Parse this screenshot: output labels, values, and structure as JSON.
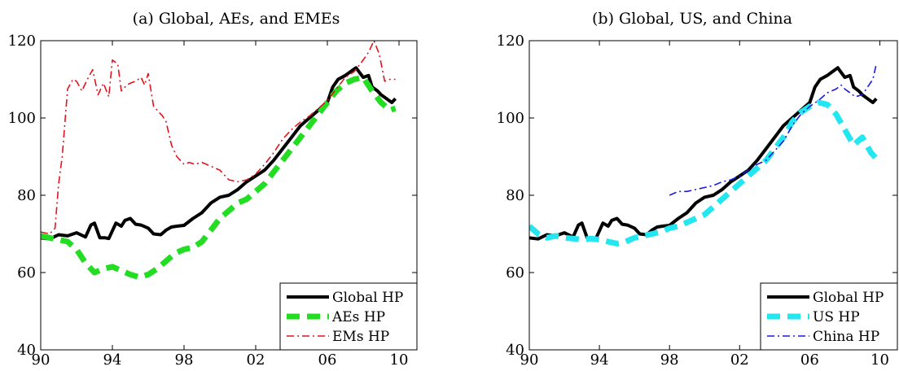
{
  "chart_data": [
    {
      "type": "line",
      "title": "(a) Global, AEs, and EMEs",
      "xlabel": "",
      "ylabel": "",
      "xlim": [
        1990,
        2011
      ],
      "ylim": [
        40,
        120
      ],
      "xticks": [
        1990,
        1994,
        1998,
        2002,
        2006,
        2010
      ],
      "xtick_labels": [
        "90",
        "94",
        "98",
        "02",
        "06",
        "10"
      ],
      "yticks": [
        40,
        60,
        80,
        100,
        120
      ],
      "ytick_labels": [
        "40",
        "60",
        "80",
        "100",
        "120"
      ],
      "grid": false,
      "legend_position": "bottom-right",
      "series": [
        {
          "name": "Global HP",
          "color": "#000000",
          "style": "solid",
          "x": [
            1990.0,
            1990.5,
            1991.0,
            1991.5,
            1992.0,
            1992.5,
            1992.8,
            1993.0,
            1993.3,
            1993.6,
            1993.8,
            1994.2,
            1994.5,
            1994.7,
            1995.0,
            1995.3,
            1995.6,
            1996.0,
            1996.3,
            1996.7,
            1997.0,
            1997.3,
            1997.6,
            1998.0,
            1998.5,
            1999.0,
            1999.5,
            2000.0,
            2000.5,
            2001.0,
            2001.5,
            2002.0,
            2002.5,
            2003.0,
            2003.5,
            2004.0,
            2004.5,
            2005.0,
            2005.5,
            2006.0,
            2006.3,
            2006.6,
            2007.0,
            2007.3,
            2007.6,
            2008.0,
            2008.3,
            2008.5,
            2008.8,
            2009.0,
            2009.3,
            2009.6,
            2009.8
          ],
          "values": [
            69,
            68.7,
            69.8,
            69.5,
            70.3,
            69.2,
            72.3,
            72.8,
            69.0,
            69.0,
            68.8,
            72.8,
            72.0,
            73.5,
            74.0,
            72.5,
            72.3,
            71.5,
            70.0,
            69.8,
            71.0,
            71.8,
            72.0,
            72.2,
            74.0,
            75.5,
            78.0,
            79.5,
            80.0,
            81.5,
            83.5,
            85.0,
            86.5,
            89.0,
            92.0,
            95.0,
            98.0,
            100.0,
            102.0,
            104.0,
            108.0,
            110.0,
            111.0,
            112.0,
            113.0,
            110.5,
            111.0,
            108.0,
            107.0,
            106.0,
            105.0,
            104.0,
            105.0
          ]
        },
        {
          "name": "AEs HP",
          "color": "#22dd22",
          "style": "dashed",
          "x": [
            1990.0,
            1990.5,
            1991.0,
            1991.5,
            1992.0,
            1992.5,
            1993.0,
            1993.5,
            1994.0,
            1994.5,
            1995.0,
            1995.5,
            1996.0,
            1996.5,
            1997.0,
            1997.5,
            1998.0,
            1998.5,
            1999.0,
            1999.5,
            2000.0,
            2000.5,
            2001.0,
            2001.5,
            2002.0,
            2002.5,
            2003.0,
            2003.5,
            2004.0,
            2004.5,
            2005.0,
            2005.5,
            2006.0,
            2006.5,
            2007.0,
            2007.5,
            2008.0,
            2008.5,
            2009.0,
            2009.5,
            2009.8
          ],
          "values": [
            69.5,
            69.0,
            68.5,
            68.0,
            66.0,
            62.5,
            60.0,
            61.0,
            61.5,
            60.5,
            59.5,
            58.8,
            59.5,
            61.0,
            63.0,
            65.0,
            66.0,
            66.5,
            68.0,
            71.0,
            74.0,
            76.0,
            78.0,
            79.0,
            81.0,
            83.0,
            86.0,
            89.0,
            92.0,
            95.0,
            98.0,
            101.0,
            104.0,
            107.0,
            109.0,
            110.0,
            110.5,
            107.0,
            104.0,
            102.0,
            102.5
          ]
        },
        {
          "name": "EMs HP",
          "color": "#e0141e",
          "style": "dashdot",
          "x": [
            1990.0,
            1990.5,
            1990.8,
            1991.0,
            1991.2,
            1991.5,
            1991.8,
            1992.0,
            1992.3,
            1992.6,
            1992.9,
            1993.2,
            1993.5,
            1993.8,
            1994.0,
            1994.3,
            1994.5,
            1994.8,
            1995.0,
            1995.3,
            1995.6,
            1995.8,
            1996.0,
            1996.3,
            1996.6,
            1996.8,
            1997.0,
            1997.3,
            1997.6,
            1998.0,
            1998.3,
            1998.6,
            1999.0,
            1999.5,
            2000.0,
            2000.5,
            2001.0,
            2001.5,
            2002.0,
            2002.5,
            2003.0,
            2003.5,
            2004.0,
            2004.5,
            2005.0,
            2005.5,
            2006.0,
            2006.5,
            2007.0,
            2007.5,
            2008.0,
            2008.3,
            2008.6,
            2008.9,
            2009.2,
            2009.5,
            2009.8
          ],
          "values": [
            70.5,
            70.0,
            71.5,
            83.0,
            90.0,
            107.5,
            110.0,
            109.5,
            107.0,
            110.0,
            112.5,
            106.0,
            109.0,
            105.5,
            115.0,
            114.0,
            107.0,
            108.5,
            109.0,
            109.5,
            110.5,
            108.5,
            111.5,
            103.0,
            101.5,
            100.5,
            99.0,
            93.0,
            90.0,
            88.0,
            88.5,
            88.0,
            88.5,
            87.5,
            86.5,
            84.0,
            83.5,
            84.0,
            85.5,
            88.0,
            91.0,
            94.5,
            97.0,
            99.0,
            100.5,
            102.5,
            104.5,
            107.5,
            110.5,
            112.0,
            115.0,
            117.0,
            120.0,
            116.5,
            109.5,
            110.0,
            110.0
          ]
        }
      ]
    },
    {
      "type": "line",
      "title": "(b) Global, US, and China",
      "xlabel": "",
      "ylabel": "",
      "xlim": [
        1990,
        2011
      ],
      "ylim": [
        40,
        120
      ],
      "xticks": [
        1990,
        1994,
        1998,
        2002,
        2006,
        2010
      ],
      "xtick_labels": [
        "90",
        "94",
        "98",
        "02",
        "06",
        "10"
      ],
      "yticks": [
        40,
        60,
        80,
        100,
        120
      ],
      "ytick_labels": [
        "40",
        "60",
        "80",
        "100",
        "120"
      ],
      "grid": false,
      "legend_position": "bottom-right",
      "series": [
        {
          "name": "Global HP",
          "color": "#000000",
          "style": "solid",
          "x": [
            1990.0,
            1990.5,
            1991.0,
            1991.5,
            1992.0,
            1992.5,
            1992.8,
            1993.0,
            1993.3,
            1993.6,
            1993.8,
            1994.2,
            1994.5,
            1994.7,
            1995.0,
            1995.3,
            1995.6,
            1996.0,
            1996.3,
            1996.7,
            1997.0,
            1997.3,
            1997.6,
            1998.0,
            1998.5,
            1999.0,
            1999.5,
            2000.0,
            2000.5,
            2001.0,
            2001.5,
            2002.0,
            2002.5,
            2003.0,
            2003.5,
            2004.0,
            2004.5,
            2005.0,
            2005.5,
            2006.0,
            2006.3,
            2006.6,
            2007.0,
            2007.3,
            2007.6,
            2008.0,
            2008.3,
            2008.5,
            2008.8,
            2009.0,
            2009.3,
            2009.6,
            2009.8
          ],
          "values": [
            69,
            68.7,
            69.8,
            69.5,
            70.3,
            69.2,
            72.3,
            72.8,
            69.0,
            69.0,
            68.8,
            72.8,
            72.0,
            73.5,
            74.0,
            72.5,
            72.3,
            71.5,
            70.0,
            69.8,
            71.0,
            71.8,
            72.0,
            72.2,
            74.0,
            75.5,
            78.0,
            79.5,
            80.0,
            81.5,
            83.5,
            85.0,
            86.5,
            89.0,
            92.0,
            95.0,
            98.0,
            100.0,
            102.0,
            104.0,
            108.0,
            110.0,
            111.0,
            112.0,
            113.0,
            110.5,
            111.0,
            108.0,
            107.0,
            106.0,
            105.0,
            104.0,
            105.0
          ]
        },
        {
          "name": "US HP",
          "color": "#22e6f0",
          "style": "dashed",
          "x": [
            1990.0,
            1990.5,
            1991.0,
            1991.5,
            1992.0,
            1992.5,
            1993.0,
            1993.5,
            1994.0,
            1994.5,
            1995.0,
            1995.5,
            1996.0,
            1996.5,
            1997.0,
            1997.5,
            1998.0,
            1998.5,
            1999.0,
            1999.5,
            2000.0,
            2000.5,
            2001.0,
            2001.5,
            2002.0,
            2002.5,
            2003.0,
            2003.5,
            2004.0,
            2004.5,
            2005.0,
            2005.5,
            2006.0,
            2006.5,
            2007.0,
            2007.5,
            2008.0,
            2008.5,
            2009.0,
            2009.5,
            2009.8
          ],
          "values": [
            72.0,
            70.0,
            69.0,
            69.5,
            69.0,
            68.8,
            68.5,
            68.8,
            68.5,
            68.0,
            67.5,
            68.0,
            69.0,
            69.5,
            70.0,
            70.5,
            71.5,
            72.0,
            73.0,
            74.0,
            75.0,
            77.0,
            79.0,
            81.0,
            83.0,
            85.0,
            87.0,
            89.0,
            92.0,
            95.0,
            99.0,
            101.5,
            103.0,
            104.0,
            103.5,
            101.0,
            97.0,
            93.0,
            95.0,
            91.0,
            89.5
          ]
        },
        {
          "name": "China HP",
          "color": "#1a1ae0",
          "style": "dashdot",
          "x": [
            1998.0,
            1998.5,
            1999.0,
            1999.5,
            2000.0,
            2000.5,
            2001.0,
            2001.5,
            2002.0,
            2002.5,
            2003.0,
            2003.5,
            2004.0,
            2004.5,
            2005.0,
            2005.5,
            2006.0,
            2006.5,
            2007.0,
            2007.5,
            2007.8,
            2008.0,
            2008.3,
            2008.6,
            2009.0,
            2009.3,
            2009.6,
            2009.8
          ],
          "values": [
            80.0,
            81.0,
            81.0,
            81.5,
            82.0,
            82.5,
            83.5,
            84.0,
            85.0,
            86.5,
            88.0,
            89.0,
            91.5,
            94.0,
            98.0,
            101.0,
            103.0,
            104.5,
            106.5,
            107.5,
            108.5,
            107.5,
            106.5,
            105.5,
            106.0,
            108.0,
            110.0,
            114.0
          ]
        }
      ]
    }
  ]
}
